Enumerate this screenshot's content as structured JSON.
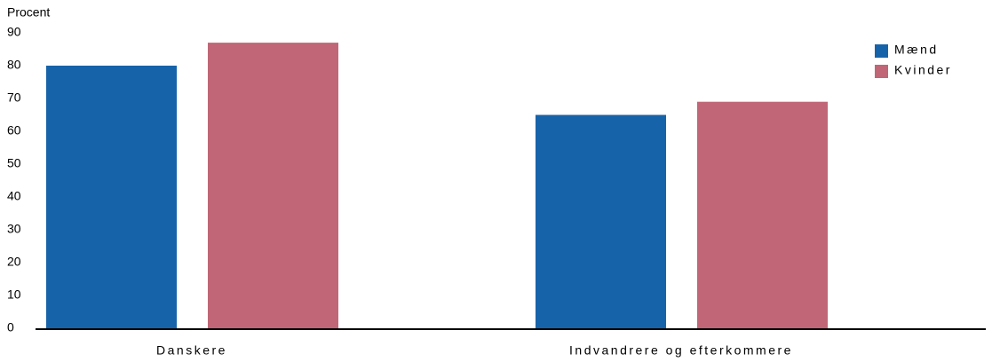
{
  "chart_data": {
    "type": "bar",
    "y_label": "Procent",
    "categories": [
      "Danskere",
      "Indvandrere og efterkommere"
    ],
    "series": [
      {
        "name": "Mænd",
        "color": "#1763aa",
        "values": [
          80,
          65
        ]
      },
      {
        "name": "Kvinder",
        "color": "#c06676",
        "values": [
          87,
          69
        ]
      }
    ],
    "ylim": [
      0,
      90
    ],
    "yticks": [
      0,
      10,
      20,
      30,
      40,
      50,
      60,
      70,
      80,
      90
    ],
    "grid": false,
    "legend": "upper right"
  }
}
